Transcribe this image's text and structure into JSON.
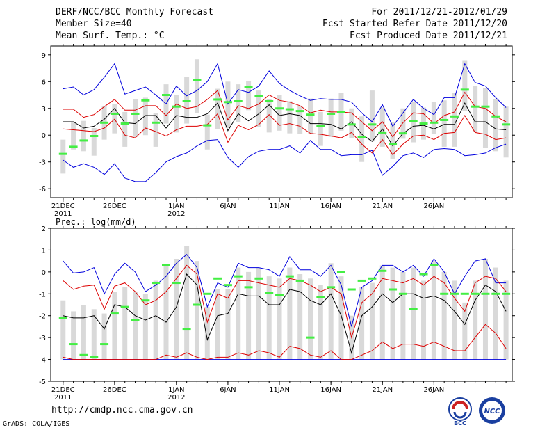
{
  "header": {
    "title": "DERF/NCC/BCC Monthly Forecast",
    "member_size": "Member Size=40",
    "period": "For 2011/12/21-2012/01/29",
    "started": "Fcst Started Refer Date 2011/12/20",
    "produced": "Fcst Produced Date 2011/12/21"
  },
  "footer": {
    "url": "http://cmdp.ncc.cma.gov.cn",
    "grads": "GrADS: COLA/IGES",
    "logo_bcc": "BCC",
    "logo_ncc": "NCC"
  },
  "colors": {
    "outer": "#0000dd",
    "inner": "#dd0000",
    "median": "#000000",
    "box": "#d9d9d9",
    "obs": "#44ee44"
  },
  "chart_data": [
    {
      "type": "box",
      "title": "Mean Surf. Temp.: °C",
      "ylabel": "Mean Surf. Temp.: °C",
      "ylim": [
        -7,
        10
      ],
      "yticks": [
        9,
        6,
        3,
        0,
        -3,
        -6
      ],
      "x_ticks": [
        {
          "day": 1,
          "label": "21DEC",
          "sub": "2011"
        },
        {
          "day": 6,
          "label": "26DEC",
          "sub": ""
        },
        {
          "day": 12,
          "label": "1JAN",
          "sub": "2012"
        },
        {
          "day": 17,
          "label": "6JAN",
          "sub": ""
        },
        {
          "day": 22,
          "label": "11JAN",
          "sub": ""
        },
        {
          "day": 27,
          "label": "16JAN",
          "sub": ""
        },
        {
          "day": 32,
          "label": "21JAN",
          "sub": ""
        },
        {
          "day": 37,
          "label": "26JAN",
          "sub": ""
        }
      ],
      "outer_max": [
        5.2,
        5.4,
        4.5,
        5.1,
        6.5,
        8.0,
        4.6,
        5.0,
        5.4,
        4.5,
        3.5,
        5.5,
        4.4,
        5.0,
        6.0,
        8.0,
        3.5,
        5.1,
        4.8,
        5.5,
        7.2,
        5.8,
        5.0,
        4.4,
        3.9,
        4.1,
        4.0,
        4.0,
        3.7,
        2.5,
        1.5,
        3.4,
        1.0,
        2.5,
        4.0,
        3.0,
        2.3,
        4.2,
        4.2,
        8.0,
        5.9,
        5.5,
        4.2,
        3.1
      ],
      "inner_max": [
        2.9,
        2.9,
        2.0,
        2.3,
        3.2,
        4.0,
        2.8,
        2.8,
        3.3,
        3.3,
        2.2,
        3.5,
        3.0,
        3.2,
        4.0,
        5.0,
        1.7,
        3.3,
        3.0,
        3.5,
        4.5,
        3.9,
        3.7,
        3.3,
        2.5,
        2.8,
        2.6,
        2.6,
        2.5,
        1.5,
        0.5,
        1.5,
        -0.2,
        1.4,
        2.5,
        2.4,
        1.3,
        2.2,
        2.6,
        4.8,
        3.2,
        3.0,
        2.1,
        1.5
      ],
      "median": [
        1.5,
        1.5,
        0.8,
        1.0,
        1.8,
        3.0,
        1.4,
        1.3,
        2.2,
        2.2,
        0.8,
        2.2,
        2.0,
        2.0,
        2.4,
        3.6,
        0.5,
        2.4,
        1.6,
        2.4,
        3.4,
        2.2,
        2.4,
        2.2,
        1.3,
        1.3,
        1.2,
        0.7,
        1.5,
        0.1,
        -0.7,
        0.7,
        -1.2,
        0.2,
        1.0,
        1.1,
        0.7,
        1.2,
        1.2,
        3.6,
        1.5,
        1.5,
        0.7,
        0.6
      ],
      "inner_min": [
        0.7,
        0.6,
        0.5,
        0.4,
        0.8,
        1.8,
        0.0,
        -0.3,
        0.8,
        0.4,
        -0.1,
        0.6,
        1.0,
        1.0,
        1.2,
        2.4,
        -0.8,
        1.1,
        0.6,
        1.2,
        2.3,
        1.1,
        1.3,
        1.0,
        0.2,
        0.1,
        -0.1,
        -0.3,
        0.3,
        -1.0,
        -2.0,
        -0.5,
        -2.2,
        -1.0,
        -0.1,
        0.0,
        -0.5,
        0.2,
        0.3,
        2.2,
        0.3,
        0.1,
        -0.5,
        -0.3
      ],
      "outer_min": [
        -2.8,
        -3.6,
        -3.2,
        -3.6,
        -4.4,
        -3.2,
        -4.8,
        -5.2,
        -5.2,
        -4.2,
        -3.0,
        -2.4,
        -2.0,
        -1.2,
        -0.6,
        -0.5,
        -2.5,
        -3.6,
        -2.4,
        -1.8,
        -1.6,
        -1.6,
        -1.2,
        -2.0,
        -0.6,
        -1.6,
        -1.6,
        -2.3,
        -2.2,
        -2.2,
        -1.7,
        -4.5,
        -3.5,
        -2.3,
        -2.0,
        -2.5,
        -1.6,
        -1.5,
        -1.6,
        -2.3,
        -2.2,
        -2.0,
        -1.4,
        -1.0
      ],
      "box_top": [
        -0.5,
        1.5,
        1.6,
        0.8,
        3.3,
        3.5,
        2.6,
        4.0,
        4.2,
        2.5,
        5.7,
        4.5,
        6.5,
        8.5,
        2.3,
        5.2,
        6.0,
        5.7,
        6.1,
        5.0,
        4.0,
        4.5,
        3.8,
        3.3,
        4.1,
        2.6,
        4.1,
        4.7,
        3.0,
        2.1,
        5.0,
        3.1,
        1.5,
        3.0,
        3.7,
        3.1,
        3.7,
        3.9,
        4.7,
        8.4,
        5.5,
        5.3,
        4.0,
        3.2
      ],
      "box_bot": [
        -4.3,
        -1.6,
        -1.8,
        -2.3,
        -0.5,
        0.2,
        -1.3,
        -0.2,
        0.0,
        -1.3,
        1.3,
        0.3,
        1.3,
        2.5,
        -1.6,
        0.7,
        0.8,
        1.5,
        2.8,
        0.9,
        0.3,
        0.5,
        0.2,
        0.1,
        0.2,
        -1.2,
        -0.2,
        0.5,
        -0.3,
        -3.0,
        -0.7,
        -1.3,
        -2.7,
        -0.4,
        -0.8,
        -0.5,
        0.1,
        -1.3,
        -1.3,
        2.7,
        0.4,
        -1.4,
        -1.8,
        -2.5
      ],
      "obs": [
        -2.1,
        -1.3,
        -0.6,
        -0.1,
        1.4,
        2.4,
        1.3,
        2.4,
        3.9,
        1.4,
        4.5,
        3.2,
        3.8,
        6.2,
        1.1,
        4.0,
        3.7,
        3.8,
        5.4,
        4.4,
        3.8,
        3.0,
        2.9,
        2.7,
        2.3,
        1.0,
        2.4,
        2.6,
        1.2,
        -0.2,
        1.2,
        0.3,
        -1.0,
        0.2,
        1.6,
        1.3,
        1.4,
        1.7,
        2.1,
        5.1,
        3.2,
        3.2,
        2.1,
        1.2
      ]
    },
    {
      "type": "box",
      "title": "Prec.: log(mm/d)",
      "ylabel": "Prec.: log(mm/d)",
      "ylim": [
        -5,
        2
      ],
      "yticks": [
        2,
        1,
        0,
        -1,
        -2,
        -3,
        -4,
        -5
      ],
      "x_ticks": [
        {
          "day": 1,
          "label": "21DEC",
          "sub": "2011"
        },
        {
          "day": 6,
          "label": "26DEC",
          "sub": ""
        },
        {
          "day": 12,
          "label": "1JAN",
          "sub": "2012"
        },
        {
          "day": 17,
          "label": "6JAN",
          "sub": ""
        },
        {
          "day": 22,
          "label": "11JAN",
          "sub": ""
        },
        {
          "day": 27,
          "label": "16JAN",
          "sub": ""
        },
        {
          "day": 32,
          "label": "21JAN",
          "sub": ""
        },
        {
          "day": 37,
          "label": "26JAN",
          "sub": ""
        }
      ],
      "outer_max": [
        0.5,
        -0.05,
        0.0,
        0.2,
        -1.0,
        -0.1,
        0.4,
        0.0,
        -0.9,
        -0.6,
        -0.2,
        0.4,
        0.8,
        0.2,
        -1.6,
        -0.5,
        -0.7,
        0.4,
        0.2,
        0.2,
        0.1,
        -0.2,
        0.7,
        0.1,
        0.1,
        -0.2,
        0.3,
        -0.6,
        -2.5,
        -0.7,
        -0.4,
        0.3,
        0.3,
        0.0,
        0.3,
        -0.2,
        0.6,
        0.0,
        -1.0,
        -0.2,
        0.5,
        0.6,
        -0.5,
        -0.5
      ],
      "inner_max": [
        -0.4,
        -0.8,
        -0.65,
        -0.6,
        -1.7,
        -0.65,
        -0.5,
        -0.9,
        -1.5,
        -1.3,
        -0.9,
        -0.3,
        0.3,
        -0.1,
        -2.3,
        -1.0,
        -1.2,
        -0.4,
        -0.4,
        -0.5,
        -0.6,
        -0.7,
        -0.3,
        -0.4,
        -0.6,
        -0.9,
        -0.7,
        -1.0,
        -3.0,
        -1.4,
        -1.0,
        -0.3,
        -0.4,
        -0.5,
        -0.3,
        -0.6,
        -0.2,
        -0.5,
        -1.2,
        -1.8,
        -0.5,
        -0.2,
        -0.3,
        -0.9
      ],
      "median": [
        -2.0,
        -2.1,
        -2.1,
        -2.0,
        -2.6,
        -1.5,
        -1.6,
        -2.0,
        -2.2,
        -2.0,
        -2.3,
        -1.6,
        -0.1,
        -0.6,
        -3.1,
        -2.0,
        -1.9,
        -1.0,
        -1.1,
        -1.1,
        -1.5,
        -1.5,
        -0.8,
        -0.9,
        -1.3,
        -1.5,
        -1.0,
        -2.0,
        -3.7,
        -2.0,
        -1.6,
        -1.0,
        -1.4,
        -1.0,
        -1.0,
        -1.2,
        -1.1,
        -1.3,
        -1.8,
        -2.4,
        -1.3,
        -0.6,
        -0.9,
        -1.8
      ],
      "inner_min": [
        -3.9,
        -4.0,
        -4.0,
        -4.0,
        -4.0,
        -4.0,
        -4.0,
        -4.0,
        -4.0,
        -4.0,
        -3.8,
        -3.9,
        -3.7,
        -3.9,
        -4.0,
        -3.9,
        -3.9,
        -3.7,
        -3.8,
        -3.6,
        -3.7,
        -3.9,
        -3.4,
        -3.5,
        -3.8,
        -3.9,
        -3.6,
        -4.0,
        -4.0,
        -3.8,
        -3.6,
        -3.2,
        -3.5,
        -3.3,
        -3.3,
        -3.4,
        -3.2,
        -3.4,
        -3.6,
        -3.6,
        -3.0,
        -2.4,
        -2.8,
        -3.5
      ],
      "outer_min": [
        -4.0,
        -4.0,
        -4.0,
        -4.0,
        -4.0,
        -4.0,
        -4.0,
        -4.0,
        -4.0,
        -4.0,
        -4.0,
        -4.0,
        -4.0,
        -4.0,
        -4.0,
        -4.0,
        -4.0,
        -4.0,
        -4.0,
        -4.0,
        -4.0,
        -4.0,
        -4.0,
        -4.0,
        -4.0,
        -4.0,
        -4.0,
        -4.0,
        -4.0,
        -4.0,
        -4.0,
        -4.0,
        -4.0,
        -4.0,
        -4.0,
        -4.0,
        -4.0,
        -4.0,
        -4.0,
        -4.0,
        -4.0,
        -4.0,
        -4.0,
        -4.0
      ],
      "box_top": [
        -1.3,
        -1.8,
        -1.5,
        -1.7,
        -1.9,
        -0.9,
        -0.7,
        -0.9,
        -1.0,
        -0.4,
        0.3,
        0.6,
        1.2,
        0.5,
        -1.6,
        -0.8,
        -0.8,
        0.2,
        0.0,
        0.2,
        -0.2,
        -0.3,
        0.2,
        -0.1,
        -0.3,
        -0.6,
        0.4,
        -0.2,
        -2.0,
        -0.7,
        -0.5,
        0.3,
        0.2,
        0.0,
        0.2,
        -0.4,
        0.5,
        0.0,
        -0.4,
        -1.4,
        -0.4,
        0.6,
        0.2,
        -0.4
      ],
      "box_bot": [
        -4.0,
        -4.0,
        -4.0,
        -4.0,
        -4.0,
        -4.0,
        -4.0,
        -4.0,
        -4.0,
        -4.0,
        -4.0,
        -4.0,
        -4.0,
        -4.0,
        -4.0,
        -4.0,
        -4.0,
        -4.0,
        -4.0,
        -4.0,
        -4.0,
        -4.0,
        -4.0,
        -4.0,
        -4.0,
        -4.0,
        -4.0,
        -4.0,
        -4.0,
        -4.0,
        -4.0,
        -4.0,
        -4.0,
        -4.0,
        -4.0,
        -4.0,
        -4.0,
        -4.0,
        -4.0,
        -4.0,
        -4.0,
        -4.0,
        -4.0,
        -4.0
      ],
      "obs": [
        -2.1,
        -3.3,
        -3.8,
        -3.9,
        -3.3,
        -1.9,
        -1.6,
        -2.2,
        -1.3,
        -0.5,
        0.3,
        -0.5,
        -2.6,
        -1.5,
        -1.0,
        -0.3,
        -0.6,
        -0.2,
        -0.7,
        -0.3,
        -0.95,
        -1.05,
        -0.2,
        -0.4,
        -3.0,
        -1.15,
        -0.7,
        -0.0,
        -0.8,
        -0.4,
        -0.3,
        0.05,
        -0.8,
        -1.0,
        -1.7,
        -0.1,
        0.3,
        -1.0,
        -1.0,
        -1.0,
        -1.0,
        -1.0,
        -1.0,
        -1.0
      ]
    }
  ]
}
